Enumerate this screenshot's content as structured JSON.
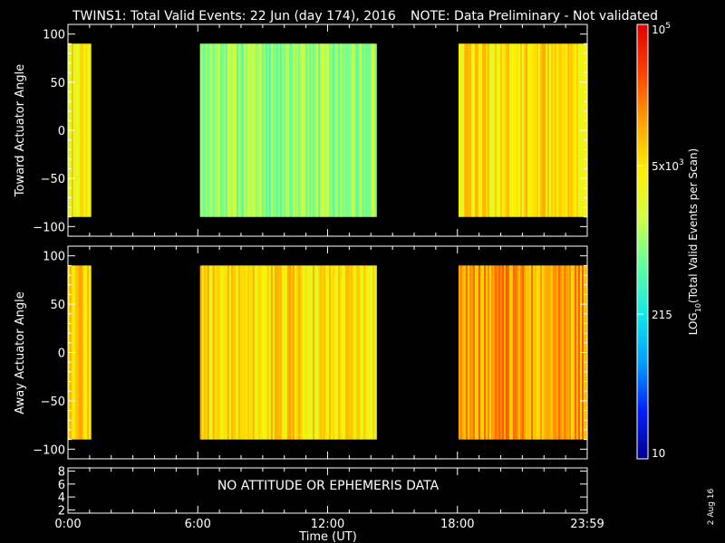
{
  "header": {
    "title": "TWINS1: Total Valid Events: 22 Jun (day 174), 2016",
    "note": "NOTE: Data Preliminary - Not validated",
    "note_color": "#ff2020"
  },
  "side_stamp": "2 Aug 16",
  "chart_data": [
    {
      "type": "heatmap",
      "ylabel": "Toward Actuator Angle",
      "ylim": [
        -110,
        110
      ],
      "yticks": [
        "100",
        "50",
        "0",
        "−50",
        "−100"
      ],
      "ytick_values": [
        100,
        50,
        0,
        -50,
        -100
      ],
      "angle_range": [
        -90,
        90
      ],
      "xlim_hours": [
        0,
        24
      ],
      "data_segments_hours": [
        [
          0.0,
          1.05
        ],
        [
          6.1,
          14.25
        ],
        [
          18.05,
          24.0
        ]
      ],
      "colorbar_log_value_estimate": {
        "segment_1": 3.6,
        "segment_2": 3.0,
        "segment_3": 3.7
      },
      "background": "#000000"
    },
    {
      "type": "heatmap",
      "ylabel": "Away Actuator Angle",
      "ylim": [
        -110,
        110
      ],
      "yticks": [
        "100",
        "50",
        "0",
        "−50",
        "−100"
      ],
      "ytick_values": [
        100,
        50,
        0,
        -50,
        -100
      ],
      "angle_range": [
        -90,
        90
      ],
      "xlim_hours": [
        0,
        24
      ],
      "data_segments_hours": [
        [
          0.0,
          1.05
        ],
        [
          6.1,
          14.25
        ],
        [
          18.05,
          24.0
        ]
      ],
      "colorbar_log_value_estimate": {
        "segment_1": 3.8,
        "segment_2": 3.75,
        "segment_3": 4.1
      },
      "background": "#000000"
    },
    {
      "type": "line",
      "ylim": [
        1.5,
        8.5
      ],
      "yticks": [
        "8",
        "6",
        "4",
        "2"
      ],
      "ytick_values": [
        8,
        6,
        4,
        2
      ],
      "message": "NO ATTITUDE OR EPHEMERIS DATA"
    }
  ],
  "x_axis": {
    "label": "Time (UT)",
    "ticks": [
      "0:00",
      "6:00",
      "12:00",
      "18:00",
      "23:59"
    ],
    "tick_hours": [
      0,
      6,
      12,
      18,
      24
    ],
    "minor_step_hours": 1
  },
  "colorbar": {
    "scale": "log",
    "range": [
      10,
      100000
    ],
    "ticks": [
      {
        "label": "10",
        "value": 10
      },
      {
        "label": "215",
        "value": 215
      },
      {
        "label": "5x10",
        "sup": "3",
        "value": 5000
      },
      {
        "label": "10",
        "sup": "5",
        "value": 100000
      }
    ],
    "label_pre": "LOG",
    "label_sub": "10",
    "label_post": "(Total Valid Events per Scan)",
    "colormap": [
      "#00008f",
      "#0020ff",
      "#00a0ff",
      "#10e8e8",
      "#60ffa0",
      "#d0ff40",
      "#ffee00",
      "#ffa000",
      "#ff4000",
      "#e00000"
    ]
  }
}
